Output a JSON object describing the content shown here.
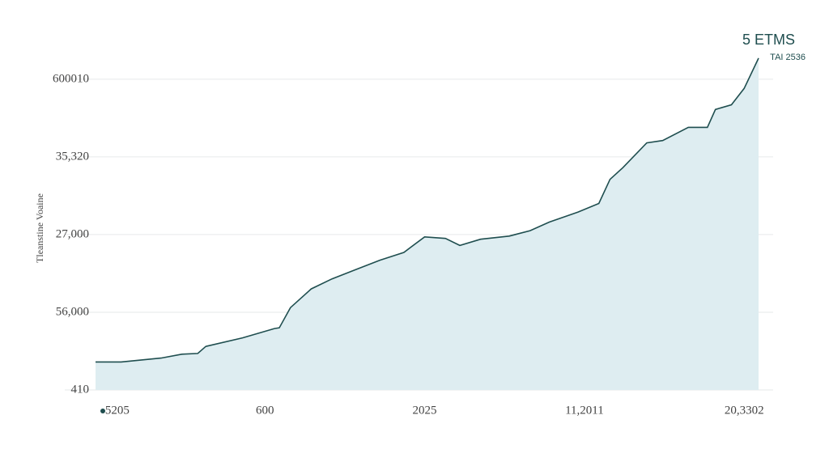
{
  "chart_data": {
    "type": "area",
    "y_label": "Tleanstine Voaine",
    "annotation": "5 ETMS",
    "annotation_sub": "TAI 2536",
    "color": "#1f4e4f",
    "fill": "#deedf1",
    "x": [
      -0.06,
      0.1,
      0.35,
      0.48,
      0.58,
      0.63,
      0.86,
      1.06,
      1.09,
      1.16,
      1.29,
      1.42,
      1.57,
      1.72,
      1.87,
      2.0,
      2.13,
      2.22,
      2.35,
      2.53,
      2.66,
      2.78,
      2.96,
      3.09,
      3.16,
      3.24,
      3.39,
      3.49,
      3.65,
      3.77,
      3.82,
      3.92,
      4.0,
      4.09
    ],
    "values": [
      0.36,
      0.36,
      0.41,
      0.46,
      0.47,
      0.56,
      0.67,
      0.79,
      0.8,
      1.06,
      1.3,
      1.43,
      1.55,
      1.67,
      1.77,
      1.97,
      1.95,
      1.86,
      1.94,
      1.98,
      2.05,
      2.16,
      2.29,
      2.4,
      2.71,
      2.86,
      3.18,
      3.21,
      3.38,
      3.38,
      3.61,
      3.67,
      3.88,
      4.27
    ],
    "xlim": [
      -0.06,
      4.09
    ],
    "ylim": [
      0,
      4.3
    ],
    "xticks": [
      {
        "value": 0,
        "label": "5205"
      },
      {
        "value": 1,
        "label": "600"
      },
      {
        "value": 2,
        "label": "2025"
      },
      {
        "value": 3,
        "label": "11,2011"
      },
      {
        "value": 4,
        "label": "20,3302"
      }
    ],
    "yticks": [
      {
        "value": 0,
        "label": "410"
      },
      {
        "value": 1,
        "label": "56,000"
      },
      {
        "value": 2,
        "label": "27,000"
      },
      {
        "value": 3,
        "label": "35,320"
      },
      {
        "value": 4,
        "label": "600010"
      }
    ],
    "grid": true
  }
}
